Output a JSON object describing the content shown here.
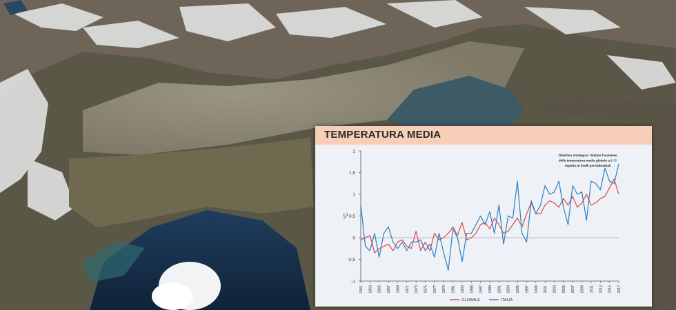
{
  "panel": {
    "title": "TEMPERATURA MEDIA"
  },
  "colors": {
    "globale": "#d9484b",
    "italia": "#2b7fc1",
    "header_bg": "#f7cfb8",
    "plot_bg": "#eef1f5"
  },
  "chart_data": {
    "type": "line",
    "title": "TEMPERATURA MEDIA",
    "ylabel": "°C",
    "ylim": [
      -1,
      2
    ],
    "yticks": [
      "2",
      "1,5",
      "1",
      "0,5",
      "0",
      "-0,5",
      "-1"
    ],
    "xlim": [
      1961,
      2017
    ],
    "xticks": [
      "1961",
      "1963",
      "1965",
      "1967",
      "1969",
      "1971",
      "1973",
      "1975",
      "1977",
      "1979",
      "1981",
      "1983",
      "1985",
      "1987",
      "1989",
      "1991",
      "1993",
      "1995",
      "1997",
      "1999",
      "2001",
      "2003",
      "2005",
      "2007",
      "2009",
      "2011",
      "2013",
      "2015",
      "2017"
    ],
    "annotation": [
      "Obiettivo strategico: limitare l'aumento",
      "della temperatura media globale a 2 °C",
      "rispetto ai livelli pre-industriali"
    ],
    "legend": [
      "GLOBALE",
      "ITALIA"
    ],
    "x": [
      1961,
      1962,
      1963,
      1964,
      1965,
      1966,
      1967,
      1968,
      1969,
      1970,
      1971,
      1972,
      1973,
      1974,
      1975,
      1976,
      1977,
      1978,
      1979,
      1980,
      1981,
      1982,
      1983,
      1984,
      1985,
      1986,
      1987,
      1988,
      1989,
      1990,
      1991,
      1992,
      1993,
      1994,
      1995,
      1996,
      1997,
      1998,
      1999,
      2000,
      2001,
      2002,
      2003,
      2004,
      2005,
      2006,
      2007,
      2008,
      2009,
      2010,
      2011,
      2012,
      2013,
      2014,
      2015,
      2016,
      2017
    ],
    "series": [
      {
        "name": "GLOBALE",
        "values": [
          -0.05,
          0.0,
          0.05,
          -0.35,
          -0.25,
          -0.2,
          -0.15,
          -0.3,
          -0.1,
          -0.05,
          -0.2,
          -0.25,
          0.15,
          -0.3,
          -0.1,
          -0.3,
          0.1,
          -0.05,
          0.0,
          0.1,
          0.25,
          0.05,
          0.35,
          -0.05,
          0.0,
          0.1,
          0.3,
          0.35,
          0.2,
          0.45,
          0.3,
          0.1,
          0.15,
          0.3,
          0.45,
          0.25,
          0.55,
          0.8,
          0.55,
          0.55,
          0.75,
          0.85,
          0.8,
          0.7,
          0.9,
          0.75,
          0.95,
          0.7,
          0.8,
          1.0,
          0.75,
          0.8,
          0.9,
          0.95,
          1.15,
          1.35,
          1.0
        ]
      },
      {
        "name": "ITALIA",
        "values": [
          0.75,
          -0.2,
          -0.3,
          0.1,
          -0.45,
          0.1,
          0.25,
          -0.1,
          -0.25,
          -0.1,
          -0.3,
          -0.1,
          -0.1,
          -0.05,
          -0.3,
          -0.15,
          -0.45,
          0.1,
          -0.35,
          -0.75,
          0.2,
          0.0,
          -0.55,
          0.1,
          0.1,
          0.3,
          0.5,
          0.3,
          0.6,
          0.1,
          0.75,
          -0.15,
          0.5,
          0.45,
          1.3,
          0.1,
          -0.1,
          0.85,
          0.55,
          0.75,
          1.2,
          1.0,
          1.05,
          1.3,
          0.7,
          0.3,
          1.2,
          1.0,
          1.05,
          0.4,
          1.3,
          1.25,
          1.1,
          1.6,
          1.3,
          1.25,
          1.7
        ]
      }
    ]
  }
}
